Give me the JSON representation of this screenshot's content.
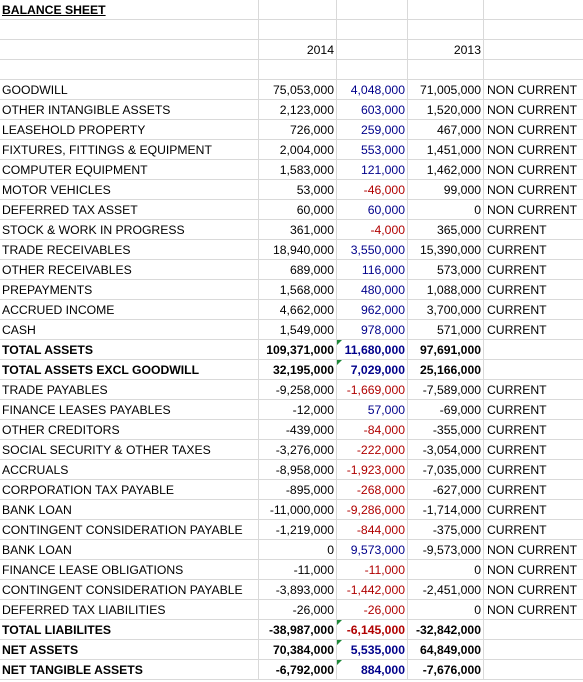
{
  "sheet": {
    "title": "BALANCE SHEET",
    "year_2014": "2014",
    "year_2013": "2013",
    "rows": [
      {
        "label": "GOODWILL",
        "y2014": "75,053,000",
        "diff": "4,048,000",
        "diff_color": "blue",
        "y2013": "71,005,000",
        "type": "NON CURRENT",
        "bold": false
      },
      {
        "label": "OTHER INTANGIBLE ASSETS",
        "y2014": "2,123,000",
        "diff": "603,000",
        "diff_color": "blue",
        "y2013": "1,520,000",
        "type": "NON CURRENT",
        "bold": false
      },
      {
        "label": "LEASEHOLD PROPERTY",
        "y2014": "726,000",
        "diff": "259,000",
        "diff_color": "blue",
        "y2013": "467,000",
        "type": "NON CURRENT",
        "bold": false
      },
      {
        "label": "FIXTURES, FITTINGS & EQUIPMENT",
        "y2014": "2,004,000",
        "diff": "553,000",
        "diff_color": "blue",
        "y2013": "1,451,000",
        "type": "NON CURRENT",
        "bold": false
      },
      {
        "label": "COMPUTER EQUIPMENT",
        "y2014": "1,583,000",
        "diff": "121,000",
        "diff_color": "blue",
        "y2013": "1,462,000",
        "type": "NON CURRENT",
        "bold": false
      },
      {
        "label": "MOTOR VEHICLES",
        "y2014": "53,000",
        "diff": "-46,000",
        "diff_color": "red",
        "y2013": "99,000",
        "type": "NON CURRENT",
        "bold": false
      },
      {
        "label": "DEFERRED TAX ASSET",
        "y2014": "60,000",
        "diff": "60,000",
        "diff_color": "blue",
        "y2013": "0",
        "type": "NON CURRENT",
        "bold": false
      },
      {
        "label": "STOCK & WORK IN PROGRESS",
        "y2014": "361,000",
        "diff": "-4,000",
        "diff_color": "red",
        "y2013": "365,000",
        "type": "CURRENT",
        "bold": false
      },
      {
        "label": "TRADE RECEIVABLES",
        "y2014": "18,940,000",
        "diff": "3,550,000",
        "diff_color": "blue",
        "y2013": "15,390,000",
        "type": "CURRENT",
        "bold": false
      },
      {
        "label": "OTHER RECEIVABLES",
        "y2014": "689,000",
        "diff": "116,000",
        "diff_color": "blue",
        "y2013": "573,000",
        "type": "CURRENT",
        "bold": false
      },
      {
        "label": "PREPAYMENTS",
        "y2014": "1,568,000",
        "diff": "480,000",
        "diff_color": "blue",
        "y2013": "1,088,000",
        "type": "CURRENT",
        "bold": false
      },
      {
        "label": "ACCRUED INCOME",
        "y2014": "4,662,000",
        "diff": "962,000",
        "diff_color": "blue",
        "y2013": "3,700,000",
        "type": "CURRENT",
        "bold": false
      },
      {
        "label": "CASH",
        "y2014": "1,549,000",
        "diff": "978,000",
        "diff_color": "blue",
        "y2013": "571,000",
        "type": "CURRENT",
        "bold": false
      },
      {
        "label": "TOTAL ASSETS",
        "y2014": "109,371,000",
        "diff": "11,680,000",
        "diff_color": "blue",
        "y2013": "97,691,000",
        "type": "",
        "bold": true,
        "marker": true
      },
      {
        "label": "TOTAL ASSETS EXCL GOODWILL",
        "y2014": "32,195,000",
        "diff": "7,029,000",
        "diff_color": "blue",
        "y2013": "25,166,000",
        "type": "",
        "bold": true,
        "marker": true
      },
      {
        "label": "TRADE PAYABLES",
        "y2014": "-9,258,000",
        "diff": "-1,669,000",
        "diff_color": "red",
        "y2013": "-7,589,000",
        "type": "CURRENT",
        "bold": false
      },
      {
        "label": "FINANCE LEASES PAYABLES",
        "y2014": "-12,000",
        "diff": "57,000",
        "diff_color": "blue",
        "y2013": "-69,000",
        "type": "CURRENT",
        "bold": false
      },
      {
        "label": "OTHER CREDITORS",
        "y2014": "-439,000",
        "diff": "-84,000",
        "diff_color": "red",
        "y2013": "-355,000",
        "type": "CURRENT",
        "bold": false
      },
      {
        "label": "SOCIAL SECURITY & OTHER TAXES",
        "y2014": "-3,276,000",
        "diff": "-222,000",
        "diff_color": "red",
        "y2013": "-3,054,000",
        "type": "CURRENT",
        "bold": false
      },
      {
        "label": "ACCRUALS",
        "y2014": "-8,958,000",
        "diff": "-1,923,000",
        "diff_color": "red",
        "y2013": "-7,035,000",
        "type": "CURRENT",
        "bold": false
      },
      {
        "label": "CORPORATION TAX PAYABLE",
        "y2014": "-895,000",
        "diff": "-268,000",
        "diff_color": "red",
        "y2013": "-627,000",
        "type": "CURRENT",
        "bold": false
      },
      {
        "label": "BANK LOAN",
        "y2014": "-11,000,000",
        "diff": "-9,286,000",
        "diff_color": "red",
        "y2013": "-1,714,000",
        "type": "CURRENT",
        "bold": false
      },
      {
        "label": "CONTINGENT CONSIDERATION PAYABLE",
        "y2014": "-1,219,000",
        "diff": "-844,000",
        "diff_color": "red",
        "y2013": "-375,000",
        "type": "CURRENT",
        "bold": false
      },
      {
        "label": "BANK LOAN",
        "y2014": "0",
        "diff": "9,573,000",
        "diff_color": "blue",
        "y2013": "-9,573,000",
        "type": "NON CURRENT",
        "bold": false
      },
      {
        "label": "FINANCE LEASE OBLIGATIONS",
        "y2014": "-11,000",
        "diff": "-11,000",
        "diff_color": "red",
        "y2013": "0",
        "type": "NON CURRENT",
        "bold": false
      },
      {
        "label": "CONTINGENT CONSIDERATION PAYABLE",
        "y2014": "-3,893,000",
        "diff": "-1,442,000",
        "diff_color": "red",
        "y2013": "-2,451,000",
        "type": "NON CURRENT",
        "bold": false
      },
      {
        "label": "DEFERRED TAX LIABILITIES",
        "y2014": "-26,000",
        "diff": "-26,000",
        "diff_color": "red",
        "y2013": "0",
        "type": "NON CURRENT",
        "bold": false
      },
      {
        "label": "TOTAL LIABILITES",
        "y2014": "-38,987,000",
        "diff": "-6,145,000",
        "diff_color": "red",
        "y2013": "-32,842,000",
        "type": "",
        "bold": true,
        "marker": true
      },
      {
        "label": "NET ASSETS",
        "y2014": "70,384,000",
        "diff": "5,535,000",
        "diff_color": "blue",
        "y2013": "64,849,000",
        "type": "",
        "bold": true,
        "marker": true
      },
      {
        "label": "NET TANGIBLE ASSETS",
        "y2014": "-6,792,000",
        "diff": "884,000",
        "diff_color": "blue",
        "y2013": "-7,676,000",
        "type": "",
        "bold": true,
        "marker": true
      }
    ]
  },
  "colors": {
    "positive_diff": "#00008b",
    "negative_diff": "#b00000",
    "gridline": "#d9d9d9",
    "comment_marker": "#1f8a3a"
  }
}
